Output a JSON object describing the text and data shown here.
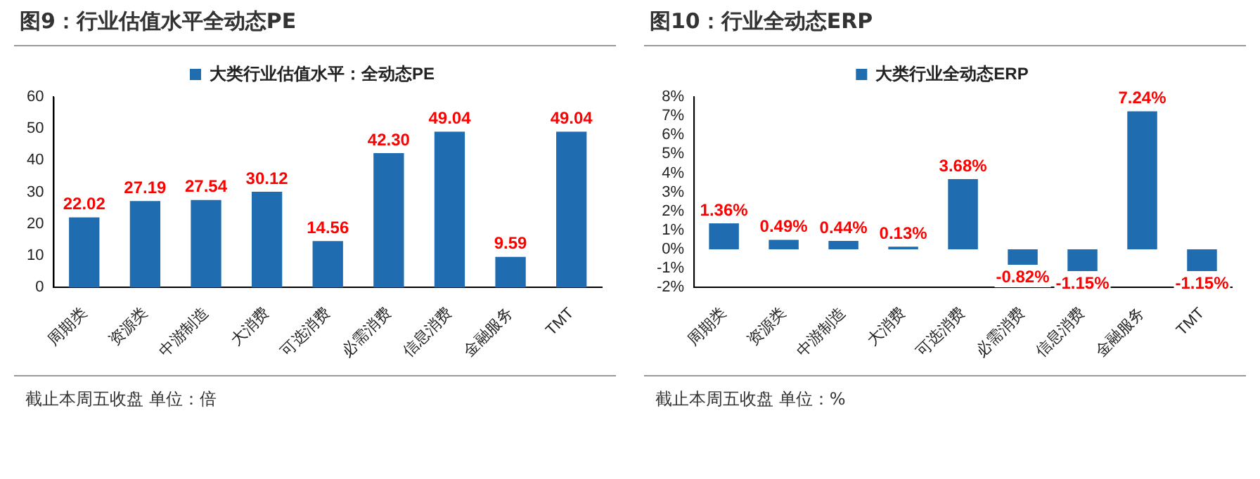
{
  "chart_data": [
    {
      "type": "bar",
      "title": "图9：行业估值水平全动态PE",
      "categories": [
        "周期类",
        "资源类",
        "中游制造",
        "大消费",
        "可选消费",
        "必需消费",
        "信息消费",
        "金融服务",
        "TMT"
      ],
      "series": [
        {
          "name": "大类行业估值水平：全动态PE",
          "color": "#1f6cb0",
          "values": [
            22.02,
            27.19,
            27.54,
            30.12,
            14.56,
            42.3,
            49.04,
            9.59,
            49.04
          ],
          "value_labels": [
            "22.02",
            "27.19",
            "27.54",
            "30.12",
            "14.56",
            "42.30",
            "49.04",
            "9.59",
            "49.04"
          ]
        }
      ],
      "ylim": [
        0,
        60
      ],
      "yticks": [
        0,
        10,
        20,
        30,
        40,
        50,
        60
      ],
      "grid": false,
      "legend": "top",
      "annotations": [
        "截止本周五收盘 单位：倍"
      ]
    },
    {
      "type": "bar",
      "title": "图10：行业全动态ERP",
      "categories": [
        "周期类",
        "资源类",
        "中游制造",
        "大消费",
        "可选消费",
        "必需消费",
        "信息消费",
        "金融服务",
        "TMT"
      ],
      "series": [
        {
          "name": "大类行业全动态ERP",
          "color": "#1f6cb0",
          "values": [
            1.36,
            0.49,
            0.44,
            0.13,
            3.68,
            -0.82,
            -1.15,
            7.24,
            -1.15
          ],
          "value_labels": [
            "1.36%",
            "0.49%",
            "0.44%",
            "0.13%",
            "3.68%",
            "-0.82%",
            "-1.15%",
            "7.24%",
            "-1.15%"
          ]
        }
      ],
      "ylim": [
        -2,
        8
      ],
      "yticks": [
        {
          "value": -2,
          "label": "-2%"
        },
        {
          "value": -1,
          "label": "-1%"
        },
        {
          "value": 0,
          "label": "0%"
        },
        {
          "value": 1,
          "label": "1%"
        },
        {
          "value": 2,
          "label": "2%"
        },
        {
          "value": 3,
          "label": "3%"
        },
        {
          "value": 4,
          "label": "4%"
        },
        {
          "value": 5,
          "label": "5%"
        },
        {
          "value": 6,
          "label": "6%"
        },
        {
          "value": 7,
          "label": "7%"
        },
        {
          "value": 8,
          "label": "8%"
        }
      ],
      "grid": false,
      "legend": "top",
      "annotations": [
        "截止本周五收盘 单位：%"
      ]
    }
  ]
}
